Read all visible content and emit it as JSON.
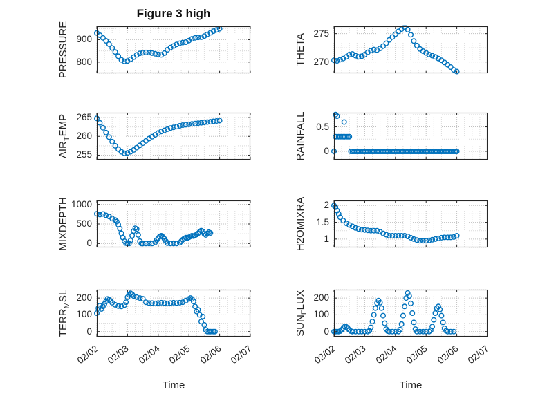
{
  "title": "Figure 3 high",
  "marker_color": "#0072BD",
  "x_axis": {
    "label": "Time",
    "lim": [
      0,
      5
    ],
    "ticks": [
      0,
      1,
      2,
      3,
      4,
      5
    ],
    "tick_labels": [
      "02/02",
      "02/03",
      "02/04",
      "02/05",
      "02/06",
      "02/07"
    ],
    "minor_step": 0.25
  },
  "chart_data": [
    {
      "name": "PRESSURE",
      "type": "scatter",
      "ylabel": {
        "pre": "PRESSURE",
        "sub": "",
        "post": ""
      },
      "ylim": [
        750,
        960
      ],
      "yticks": [
        800,
        900
      ],
      "show_xticks": false,
      "x": [
        0,
        0.1,
        0.2,
        0.3,
        0.4,
        0.5,
        0.6,
        0.7,
        0.8,
        0.9,
        1,
        1.1,
        1.2,
        1.3,
        1.4,
        1.5,
        1.6,
        1.7,
        1.8,
        1.9,
        2,
        2.1,
        2.2,
        2.3,
        2.4,
        2.5,
        2.6,
        2.7,
        2.8,
        2.9,
        3,
        3.1,
        3.2,
        3.3,
        3.4,
        3.5,
        3.6,
        3.7,
        3.8,
        3.9,
        4
      ],
      "y": [
        930,
        920,
        908,
        895,
        880,
        863,
        845,
        826,
        810,
        803,
        805,
        812,
        822,
        832,
        839,
        842,
        843,
        842,
        840,
        837,
        834,
        832,
        840,
        855,
        865,
        872,
        879,
        884,
        887,
        889,
        896,
        904,
        908,
        910,
        911,
        916,
        924,
        931,
        938,
        944,
        949
      ]
    },
    {
      "name": "THETA",
      "type": "scatter",
      "ylabel": {
        "pre": "THETA",
        "sub": "",
        "post": ""
      },
      "ylim": [
        268,
        276.3
      ],
      "yticks": [
        270,
        275
      ],
      "show_xticks": false,
      "x": [
        0,
        0.1,
        0.2,
        0.3,
        0.4,
        0.5,
        0.6,
        0.7,
        0.8,
        0.9,
        1,
        1.1,
        1.2,
        1.3,
        1.4,
        1.5,
        1.6,
        1.7,
        1.8,
        1.9,
        2,
        2.1,
        2.2,
        2.3,
        2.4,
        2.5,
        2.6,
        2.7,
        2.8,
        2.9,
        3,
        3.1,
        3.2,
        3.3,
        3.4,
        3.5,
        3.6,
        3.7,
        3.8,
        3.9,
        4
      ],
      "y": [
        270.3,
        270.2,
        270.4,
        270.6,
        270.9,
        271.3,
        271.4,
        271.1,
        270.9,
        271,
        271.3,
        271.7,
        272,
        272.2,
        272.1,
        272.4,
        272.8,
        273.3,
        273.9,
        274.4,
        274.9,
        275.4,
        275.8,
        276.1,
        275.7,
        274.8,
        273.7,
        272.9,
        272.3,
        271.9,
        271.6,
        271.3,
        271.1,
        270.9,
        270.6,
        270.3,
        269.9,
        269.5,
        269.1,
        268.6,
        268.3
      ]
    },
    {
      "name": "AIR_TEMP",
      "type": "scatter",
      "ylabel": {
        "pre": "AIR",
        "sub": "T",
        "post": "EMP"
      },
      "ylim": [
        253.8,
        266.3
      ],
      "yticks": [
        255,
        260,
        265
      ],
      "show_xticks": false,
      "x": [
        0,
        0.1,
        0.2,
        0.3,
        0.4,
        0.5,
        0.6,
        0.7,
        0.8,
        0.9,
        1,
        1.1,
        1.2,
        1.3,
        1.4,
        1.5,
        1.6,
        1.7,
        1.8,
        1.9,
        2,
        2.1,
        2.2,
        2.3,
        2.4,
        2.5,
        2.6,
        2.7,
        2.8,
        2.9,
        3,
        3.1,
        3.2,
        3.3,
        3.4,
        3.5,
        3.6,
        3.7,
        3.8,
        3.9,
        4
      ],
      "y": [
        264.8,
        263.6,
        262.3,
        261,
        259.8,
        258.6,
        257.5,
        256.6,
        255.9,
        255.5,
        255.6,
        255.9,
        256.4,
        257,
        257.6,
        258.2,
        258.8,
        259.4,
        259.9,
        260.4,
        260.9,
        261.3,
        261.6,
        261.9,
        262.2,
        262.4,
        262.6,
        262.8,
        263,
        263.1,
        263.2,
        263.3,
        263.4,
        263.5,
        263.6,
        263.7,
        263.8,
        263.9,
        264,
        264.1,
        264.2
      ]
    },
    {
      "name": "RAINFALL",
      "type": "scatter",
      "ylabel": {
        "pre": "RAINFALL",
        "sub": "",
        "post": ""
      },
      "ylim": [
        -0.17,
        0.79
      ],
      "yticks": [
        0,
        0.5
      ],
      "show_xticks": false,
      "x": [
        0,
        0.05,
        0.05,
        0.1,
        0.1,
        0.15,
        0.2,
        0.25,
        0.3,
        0.33,
        0.35,
        0.4,
        0.45,
        0.5,
        0.55,
        0.6,
        0.65,
        0.7,
        0.75,
        0.8,
        0.85,
        0.9,
        0.95,
        1,
        1.05,
        1.1,
        1.15,
        1.2,
        1.25,
        1.3,
        1.35,
        1.4,
        1.45,
        1.5,
        1.55,
        1.6,
        1.65,
        1.7,
        1.75,
        1.8,
        1.85,
        1.9,
        1.95,
        2,
        2.05,
        2.1,
        2.15,
        2.2,
        2.25,
        2.3,
        2.35,
        2.4,
        2.45,
        2.5,
        2.55,
        2.6,
        2.65,
        2.7,
        2.75,
        2.8,
        2.85,
        2.9,
        2.95,
        3,
        3.05,
        3.1,
        3.15,
        3.2,
        3.25,
        3.3,
        3.35,
        3.4,
        3.45,
        3.5,
        3.55,
        3.6,
        3.65,
        3.7,
        3.75,
        3.8,
        3.85,
        3.9,
        3.95,
        4
      ],
      "y": [
        0,
        0.3,
        0.75,
        0.72,
        0.3,
        0.3,
        0.3,
        0.3,
        0.3,
        0.6,
        0.3,
        0.3,
        0.3,
        0.3,
        0,
        0,
        0,
        0,
        0,
        0,
        0,
        0,
        0,
        0,
        0,
        0,
        0,
        0,
        0,
        0,
        0,
        0,
        0,
        0,
        0,
        0,
        0,
        0,
        0,
        0,
        0,
        0,
        0,
        0,
        0,
        0,
        0,
        0,
        0,
        0,
        0,
        0,
        0,
        0,
        0,
        0,
        0,
        0,
        0,
        0,
        0,
        0,
        0,
        0,
        0,
        0,
        0,
        0,
        0,
        0,
        0,
        0,
        0,
        0,
        0,
        0,
        0,
        0,
        0,
        0,
        0,
        0,
        0,
        0
      ]
    },
    {
      "name": "MIXDEPTH",
      "type": "scatter",
      "ylabel": {
        "pre": "MIXDEPTH",
        "sub": "",
        "post": ""
      },
      "ylim": [
        -100,
        1100
      ],
      "yticks": [
        0,
        500,
        1000
      ],
      "show_xticks": false,
      "x": [
        0,
        0.1,
        0.2,
        0.3,
        0.4,
        0.5,
        0.6,
        0.65,
        0.7,
        0.75,
        0.8,
        0.85,
        0.9,
        0.95,
        1,
        1.05,
        1.1,
        1.15,
        1.2,
        1.25,
        1.3,
        1.35,
        1.4,
        1.45,
        1.5,
        1.6,
        1.7,
        1.8,
        1.9,
        1.95,
        2,
        2.05,
        2.1,
        2.15,
        2.2,
        2.25,
        2.3,
        2.4,
        2.5,
        2.6,
        2.7,
        2.75,
        2.8,
        2.85,
        2.9,
        2.95,
        3,
        3.05,
        3.1,
        3.15,
        3.2,
        3.25,
        3.3,
        3.35,
        3.4,
        3.45,
        3.5,
        3.55,
        3.6,
        3.65,
        3.7
      ],
      "y": [
        760,
        740,
        755,
        720,
        690,
        640,
        600,
        560,
        480,
        380,
        260,
        150,
        60,
        10,
        0,
        0,
        80,
        200,
        320,
        390,
        370,
        220,
        60,
        0,
        0,
        0,
        0,
        0,
        30,
        90,
        140,
        180,
        200,
        170,
        120,
        60,
        10,
        0,
        0,
        0,
        20,
        60,
        100,
        130,
        150,
        140,
        160,
        180,
        200,
        190,
        210,
        230,
        260,
        300,
        330,
        310,
        250,
        220,
        260,
        290,
        270
      ]
    },
    {
      "name": "H2OMIXRA",
      "type": "scatter",
      "ylabel": {
        "pre": "H2OMIXRA",
        "sub": "",
        "post": ""
      },
      "ylim": [
        0.75,
        2.15
      ],
      "yticks": [
        1,
        1.5,
        2
      ],
      "show_xticks": false,
      "x": [
        0,
        0.05,
        0.1,
        0.15,
        0.2,
        0.3,
        0.4,
        0.5,
        0.6,
        0.7,
        0.8,
        0.9,
        1,
        1.1,
        1.2,
        1.3,
        1.4,
        1.5,
        1.6,
        1.7,
        1.8,
        1.9,
        2,
        2.1,
        2.2,
        2.3,
        2.4,
        2.5,
        2.6,
        2.7,
        2.8,
        2.9,
        3,
        3.1,
        3.2,
        3.3,
        3.4,
        3.5,
        3.6,
        3.7,
        3.8,
        3.9,
        4
      ],
      "y": [
        2,
        1.95,
        1.85,
        1.75,
        1.65,
        1.55,
        1.47,
        1.42,
        1.38,
        1.33,
        1.3,
        1.28,
        1.27,
        1.26,
        1.25,
        1.25,
        1.25,
        1.22,
        1.17,
        1.13,
        1.1,
        1.1,
        1.1,
        1.1,
        1.1,
        1.1,
        1.08,
        1.04,
        1,
        0.97,
        0.95,
        0.95,
        0.95,
        0.96,
        0.98,
        1,
        1.02,
        1.04,
        1.05,
        1.05,
        1.05,
        1.06,
        1.1
      ]
    },
    {
      "name": "TERR_MSL",
      "type": "scatter",
      "ylabel": {
        "pre": "TERR",
        "sub": "M",
        "post": "SL"
      },
      "ylim": [
        -30,
        250
      ],
      "yticks": [
        0,
        100,
        200
      ],
      "show_xticks": true,
      "x": [
        0,
        0.05,
        0.1,
        0.15,
        0.2,
        0.25,
        0.3,
        0.35,
        0.4,
        0.45,
        0.5,
        0.6,
        0.7,
        0.8,
        0.9,
        0.95,
        1,
        1.05,
        1.1,
        1.15,
        1.2,
        1.3,
        1.4,
        1.5,
        1.6,
        1.7,
        1.8,
        1.9,
        2,
        2.1,
        2.2,
        2.3,
        2.4,
        2.5,
        2.6,
        2.7,
        2.8,
        2.9,
        3,
        3.05,
        3.1,
        3.15,
        3.2,
        3.25,
        3.3,
        3.35,
        3.4,
        3.45,
        3.5,
        3.55,
        3.6,
        3.65,
        3.7,
        3.75,
        3.8,
        3.85
      ],
      "y": [
        110,
        140,
        155,
        135,
        150,
        165,
        180,
        195,
        190,
        182,
        172,
        160,
        152,
        150,
        158,
        175,
        205,
        220,
        228,
        222,
        212,
        205,
        200,
        196,
        175,
        170,
        170,
        168,
        170,
        172,
        170,
        168,
        170,
        172,
        170,
        172,
        175,
        185,
        195,
        200,
        195,
        180,
        150,
        120,
        130,
        100,
        60,
        90,
        40,
        10,
        0,
        0,
        0,
        0,
        0,
        0
      ]
    },
    {
      "name": "SUN_FLUX",
      "type": "scatter",
      "ylabel": {
        "pre": "SUN",
        "sub": "F",
        "post": "LUX"
      },
      "ylim": [
        -30,
        250
      ],
      "yticks": [
        0,
        100,
        200
      ],
      "show_xticks": true,
      "x": [
        0,
        0.05,
        0.1,
        0.15,
        0.2,
        0.25,
        0.3,
        0.35,
        0.4,
        0.45,
        0.5,
        0.55,
        0.6,
        0.7,
        0.8,
        0.9,
        1,
        1.1,
        1.15,
        1.2,
        1.25,
        1.3,
        1.35,
        1.4,
        1.45,
        1.5,
        1.55,
        1.6,
        1.65,
        1.7,
        1.75,
        1.8,
        1.9,
        2,
        2.1,
        2.15,
        2.2,
        2.25,
        2.3,
        2.35,
        2.4,
        2.45,
        2.5,
        2.55,
        2.6,
        2.65,
        2.7,
        2.8,
        2.9,
        3,
        3.1,
        3.15,
        3.2,
        3.25,
        3.3,
        3.35,
        3.4,
        3.45,
        3.5,
        3.55,
        3.6,
        3.65,
        3.7,
        3.8,
        3.9
      ],
      "y": [
        0,
        0,
        0,
        0,
        3,
        10,
        20,
        30,
        28,
        20,
        10,
        3,
        0,
        0,
        0,
        0,
        0,
        0,
        5,
        25,
        60,
        100,
        140,
        170,
        185,
        172,
        140,
        95,
        50,
        15,
        3,
        0,
        0,
        0,
        0,
        12,
        45,
        95,
        150,
        200,
        230,
        212,
        168,
        110,
        55,
        15,
        0,
        0,
        0,
        0,
        0,
        8,
        30,
        70,
        110,
        140,
        150,
        132,
        95,
        55,
        20,
        5,
        0,
        0,
        0
      ]
    }
  ]
}
